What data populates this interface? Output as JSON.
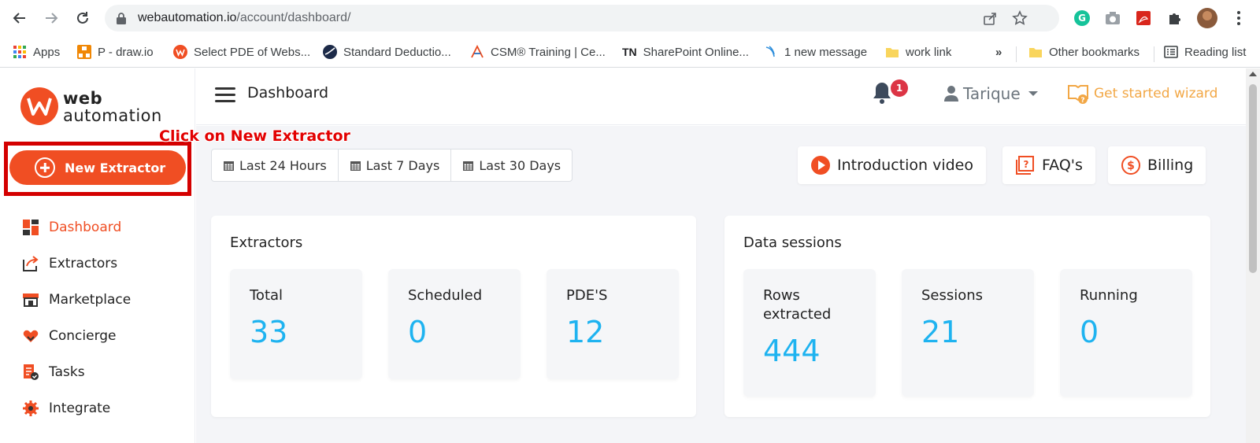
{
  "browser": {
    "url_host": "webautomation.io",
    "url_path": "/account/dashboard/",
    "bookmarks": [
      {
        "label": "Apps",
        "icon": "apps-grid-icon"
      },
      {
        "label": "P - draw.io",
        "icon": "drawio-icon"
      },
      {
        "label": "Select PDE of Webs...",
        "icon": "webautomation-icon"
      },
      {
        "label": "Standard Deductio...",
        "icon": "globe-icon"
      },
      {
        "label": "CSM® Training | Ce...",
        "icon": "scrum-icon"
      },
      {
        "label": "SharePoint Online...",
        "icon": "tn-icon",
        "prefix": "TN"
      },
      {
        "label": "1 new message",
        "icon": "message-icon"
      },
      {
        "label": "work link",
        "icon": "folder-icon"
      }
    ],
    "overflow_label": "»",
    "other_bookmarks": "Other bookmarks",
    "reading_list": "Reading list"
  },
  "brand": {
    "line1": "web",
    "line2": "automation",
    "color": "#f04e23"
  },
  "sidebar": {
    "new_extractor_label": "New Extractor",
    "annotation": "Click on New Extractor",
    "items": [
      {
        "label": "Dashboard",
        "icon": "dashboard-icon",
        "active": true
      },
      {
        "label": "Extractors",
        "icon": "share-icon"
      },
      {
        "label": "Marketplace",
        "icon": "store-icon"
      },
      {
        "label": "Concierge",
        "icon": "handshake-icon"
      },
      {
        "label": "Tasks",
        "icon": "tasks-icon"
      },
      {
        "label": "Integrate",
        "icon": "gear-icon"
      }
    ]
  },
  "header": {
    "title": "Dashboard",
    "notification_count": "1",
    "user_name": "Tarique",
    "wizard_label": "Get started wizard"
  },
  "main": {
    "ranges": [
      "Last 24 Hours",
      "Last 7 Days",
      "Last 30 Days"
    ],
    "quick_links": {
      "intro_video": "Introduction video",
      "faqs": "FAQ's",
      "billing": "Billing"
    },
    "extractors": {
      "title": "Extractors",
      "stats": [
        {
          "label": "Total",
          "value": "33"
        },
        {
          "label": "Scheduled",
          "value": "0"
        },
        {
          "label": "PDE'S",
          "value": "12"
        }
      ]
    },
    "sessions": {
      "title": "Data sessions",
      "stats": [
        {
          "label": "Rows extracted",
          "value": "444"
        },
        {
          "label": "Sessions",
          "value": "21"
        },
        {
          "label": "Running",
          "value": "0"
        }
      ]
    }
  },
  "colors": {
    "accent": "#f04e23",
    "stat_value": "#1eb3f0",
    "wizard": "#f2a745",
    "badge": "#dc3545"
  }
}
